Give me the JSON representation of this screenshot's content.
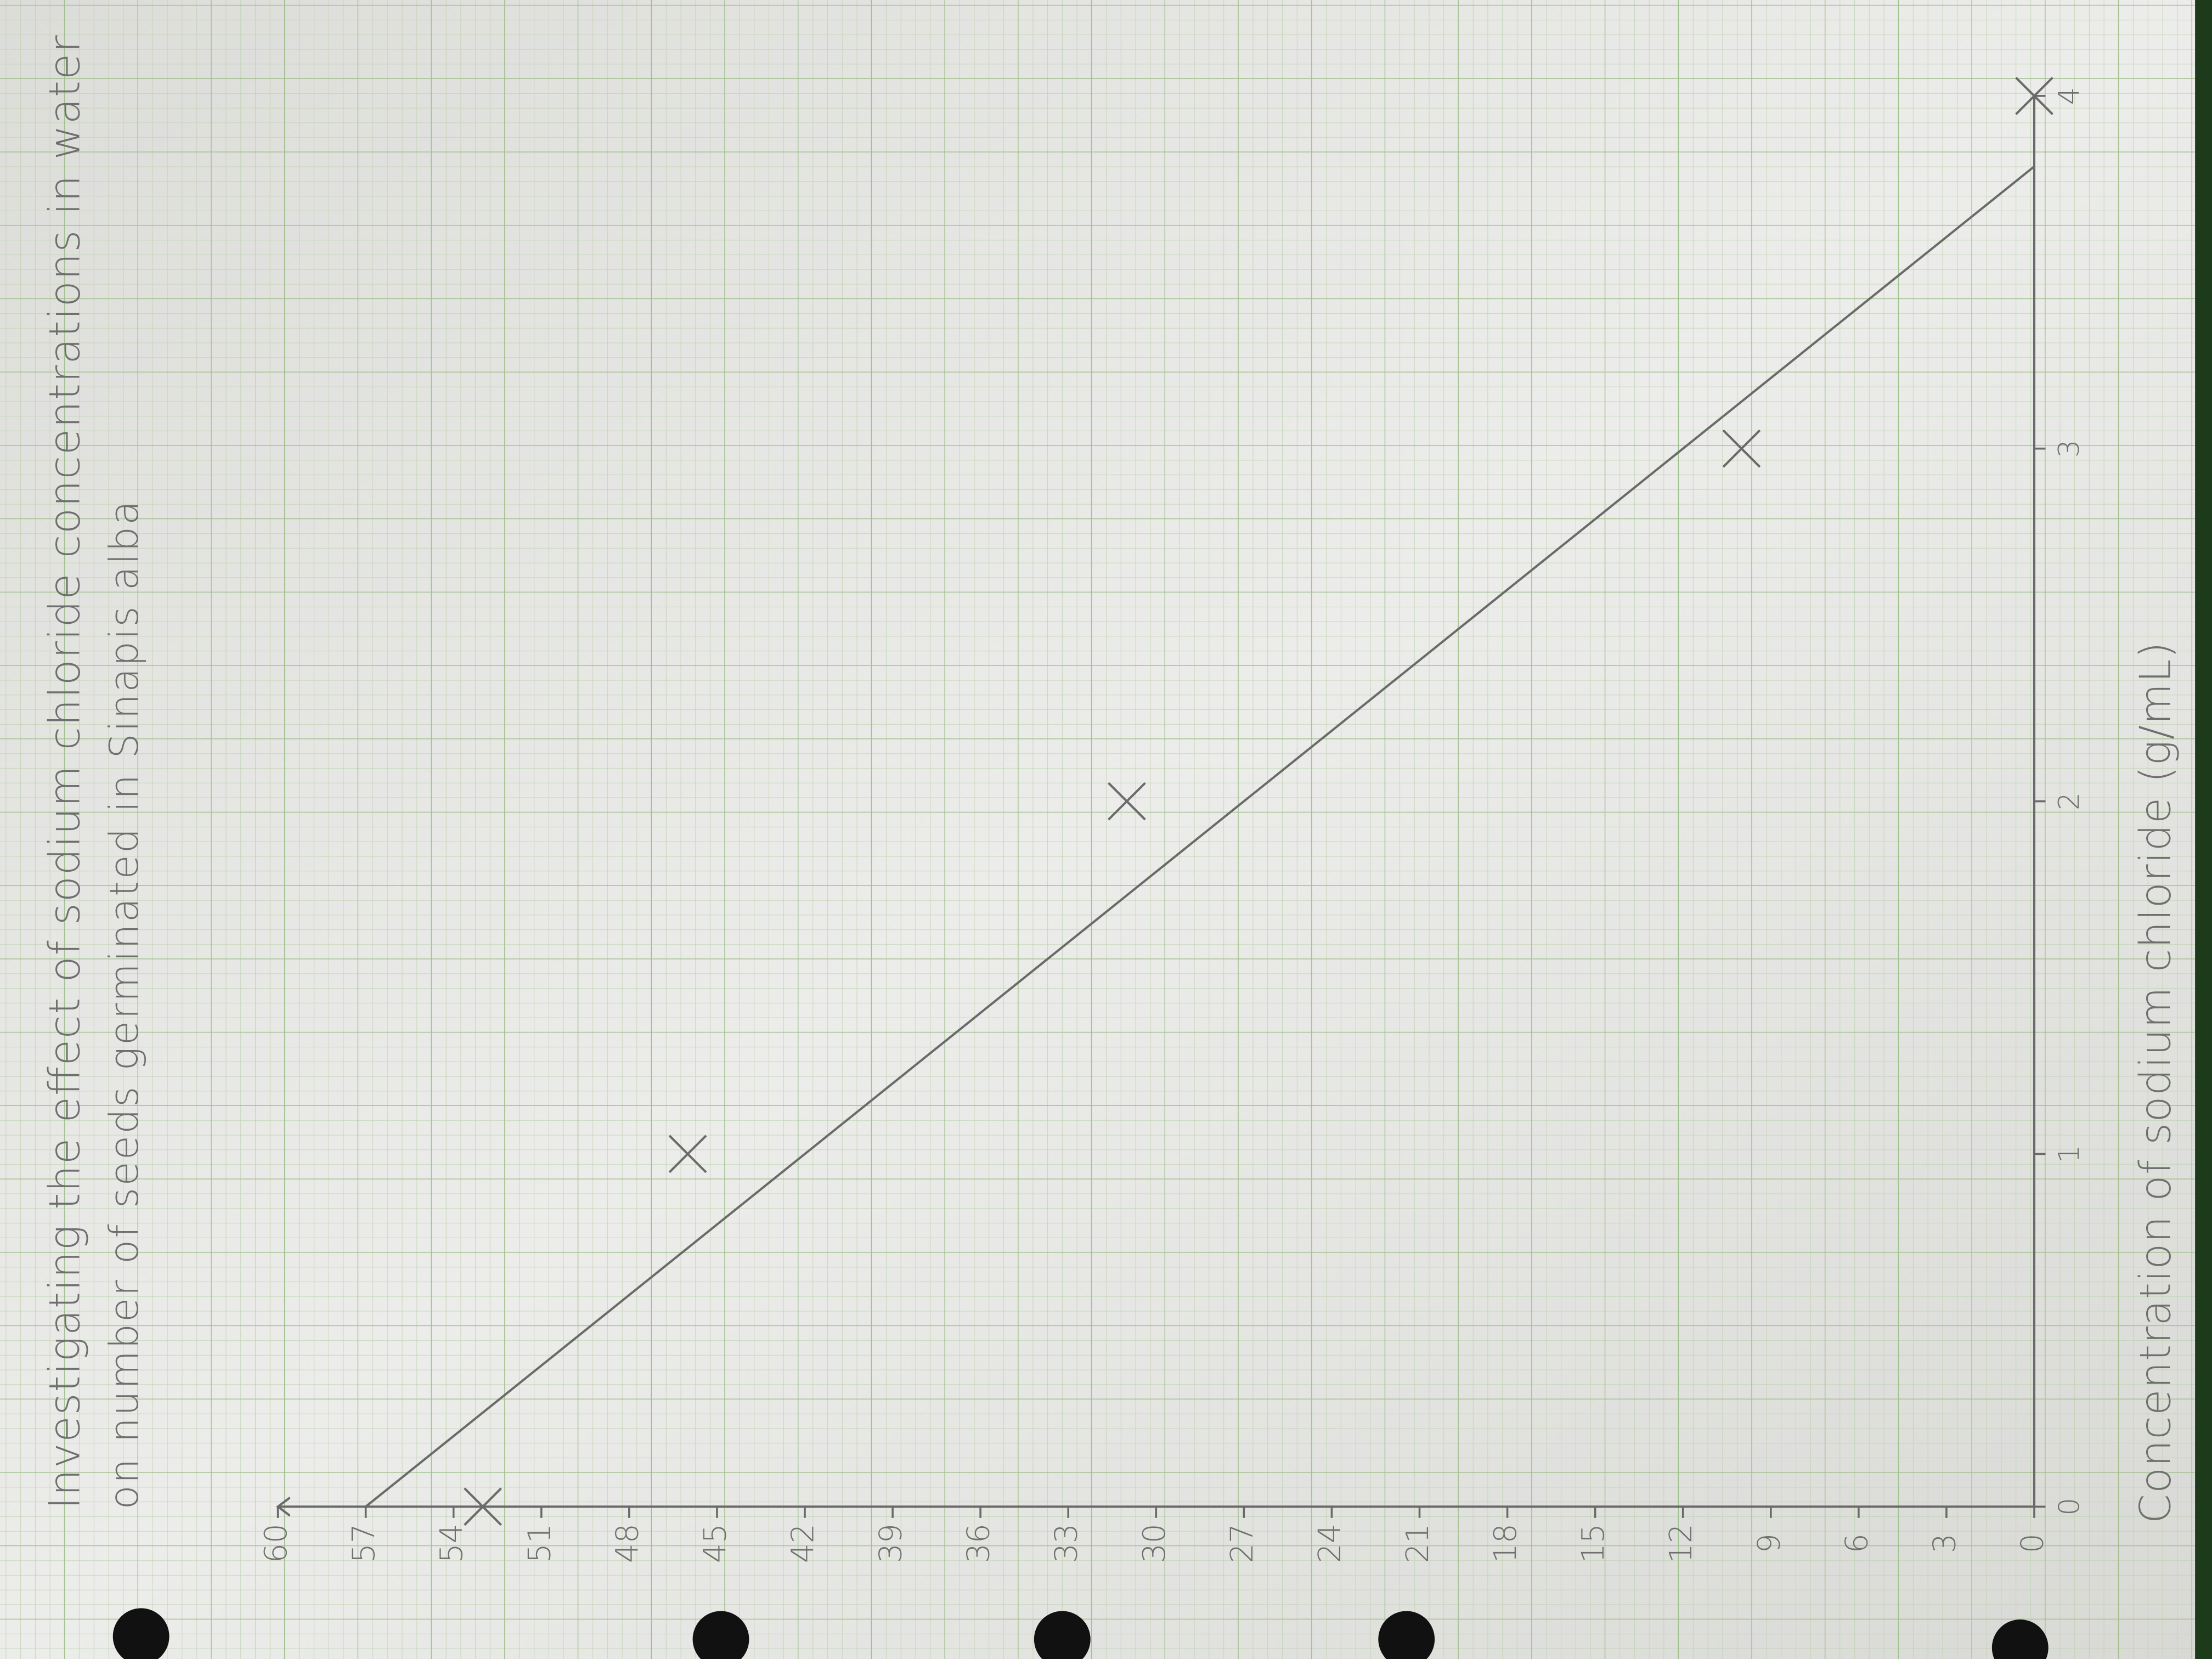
{
  "chart_data": {
    "type": "scatter",
    "title": "Investigating the effect of sodium chloride concentrations in water",
    "subtitle": "on number of seeds germinated in Sinapis alba",
    "x_label": "Concentration of sodium chloride (g/mL)",
    "x": [
      0,
      1,
      2,
      3,
      4
    ],
    "values": [
      53,
      46,
      31,
      10,
      0
    ],
    "color": "#6a6a6a",
    "trend_line": {
      "x": [
        0,
        3.8
      ],
      "values": [
        57,
        0
      ]
    },
    "xlim": [
      0,
      4
    ],
    "xticks": [
      0,
      1,
      2,
      3,
      4
    ],
    "ylim": [
      0,
      60
    ],
    "yticks": [
      0,
      3,
      6,
      9,
      12,
      15,
      18,
      21,
      24,
      27,
      30,
      33,
      36,
      39,
      42,
      45,
      48,
      51,
      54,
      57,
      60
    ]
  }
}
